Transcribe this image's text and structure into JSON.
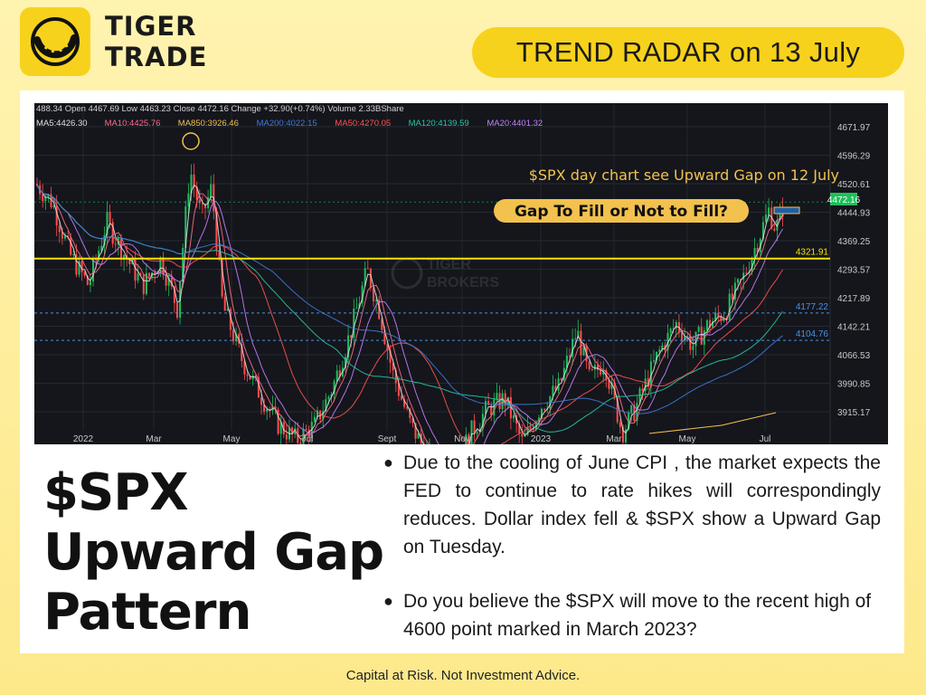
{
  "brand": {
    "line1": "TIGER",
    "line2": "TRADE",
    "logo_icon": "tiger-eye-icon"
  },
  "header": {
    "badge": "TREND RADAR on 13 July"
  },
  "chart_data": {
    "type": "candlestick",
    "title": "$SPX day chart see Upward Gap on 12 July",
    "callout": "Gap To Fill or Not to Fill?",
    "info_bar": "488.34 Open 4467.69 Low 4463.23 Close 4472.16 Change +32.90(+0.74%) Volume 2.33BShare",
    "ma_legend": [
      {
        "label": "MA5:4426.30",
        "color": "#e0e0e0"
      },
      {
        "label": "MA10:4425.76",
        "color": "#ff6a8a"
      },
      {
        "label": "MA850:3926.46",
        "color": "#f2c14e"
      },
      {
        "label": "MA200:4022.15",
        "color": "#3f7ad8"
      },
      {
        "label": "MA50:4270.05",
        "color": "#ff5252"
      },
      {
        "label": "MA120:4139.59",
        "color": "#26c6a6"
      },
      {
        "label": "MA20:4401.32",
        "color": "#c77dff"
      }
    ],
    "x_labels": [
      "2022",
      "Mar",
      "May",
      "Jul",
      "Sept",
      "Nov",
      "2023",
      "Mar",
      "May",
      "Jul"
    ],
    "y_labels": [
      "4671.97",
      "4596.29",
      "4520.61",
      "4444.93",
      "4369.25",
      "4293.57",
      "4217.89",
      "4142.21",
      "4066.53",
      "3990.85",
      "3915.17"
    ],
    "ylim": [
      3880,
      4700
    ],
    "last_price": "4472.16",
    "levels": [
      {
        "value": 4321.91,
        "label": "4321.91",
        "color": "#f5e400"
      },
      {
        "value": 4177.22,
        "label": "4177.22",
        "color": "#4a90e2"
      },
      {
        "value": 4104.76,
        "label": "4104.76",
        "color": "#4a90e2"
      }
    ],
    "watermark": [
      "TIGER",
      "BROKERS"
    ]
  },
  "headline": {
    "line1": "$SPX",
    "line2": "Upward Gap",
    "line3": "Pattern"
  },
  "bullets": [
    "Due to the cooling of June CPI , the market expects the FED to continue to rate hikes will correspondingly reduces. Dollar index fell & $SPX show a Upward Gap on Tuesday.",
    "Do you believe the $SPX will move to the recent high of 4600 point marked in March 2023?"
  ],
  "footer": "Capital at Risk. Not Investment Advice."
}
